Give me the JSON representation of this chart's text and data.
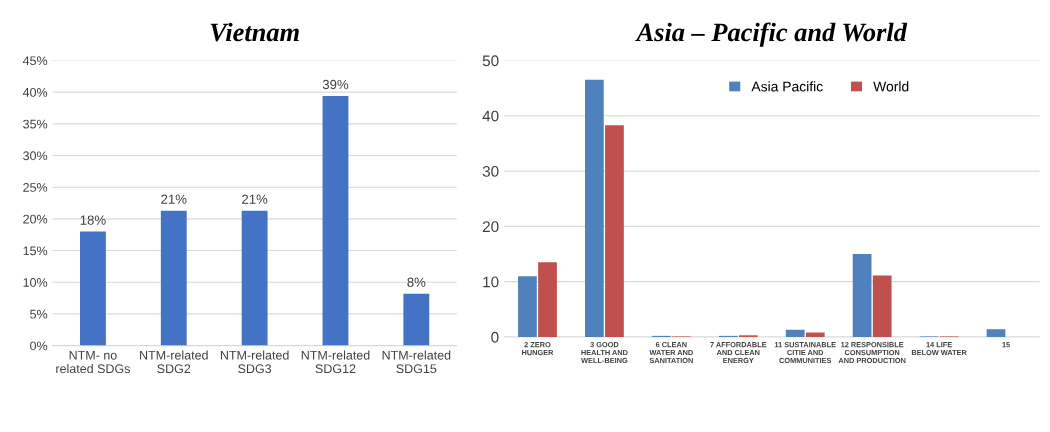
{
  "chart_data": [
    {
      "type": "bar",
      "title": "Vietnam",
      "categories": [
        "NTM- no\nrelated SDGs",
        "NTM-related\nSDG2",
        "NTM-related\nSDG3",
        "NTM-related\nSDG12",
        "NTM-related\nSDG15"
      ],
      "values": [
        18,
        21.3,
        21.3,
        39.4,
        8.2
      ],
      "value_labels": [
        "18%",
        "21%",
        "21%",
        "39%",
        "8%"
      ],
      "color": "#4472c4",
      "ylim": [
        0,
        45
      ],
      "yticks": [
        {
          "value": 0,
          "label": "0%"
        },
        {
          "value": 5,
          "label": "5%"
        },
        {
          "value": 10,
          "label": "10%"
        },
        {
          "value": 15,
          "label": "15%"
        },
        {
          "value": 20,
          "label": "20%"
        },
        {
          "value": 25,
          "label": "25%"
        },
        {
          "value": 30,
          "label": "30%"
        },
        {
          "value": 35,
          "label": "35%"
        },
        {
          "value": 40,
          "label": "40%"
        },
        {
          "value": 45,
          "label": "45%"
        }
      ],
      "grid": "y",
      "legend": false
    },
    {
      "type": "bar",
      "title": "Asia – Pacific and World",
      "categories": [
        "2 ZERO\nHUNGER",
        "3 GOOD\nHEALTH AND\nWELL-BEING",
        "6 CLEAN\nWATER AND\nSANITATION",
        "7 AFFORDABLE\nAND CLEAN\nENERGY",
        "11 SUSTAINABLE\nCITIE AND\nCOMMUNITIES",
        "12 RESPONSIBLE\nCONSUMPTION\nAND PRODUCTION",
        "14 LIFE\nBELOW WATER",
        "15"
      ],
      "series": [
        {
          "name": "Asia Pacific",
          "color": "#4f81bd",
          "values": [
            11,
            46.5,
            0.2,
            0.2,
            1.3,
            15,
            0.1,
            1.4
          ]
        },
        {
          "name": "World",
          "color": "#c0504d",
          "values": [
            13.5,
            38.3,
            0.1,
            0.3,
            0.8,
            11.1,
            0.1,
            null
          ]
        }
      ],
      "ylim": [
        0,
        50
      ],
      "yticks": [
        0,
        10,
        20,
        30,
        40,
        50
      ],
      "grid": "y",
      "legend": "top right"
    }
  ]
}
